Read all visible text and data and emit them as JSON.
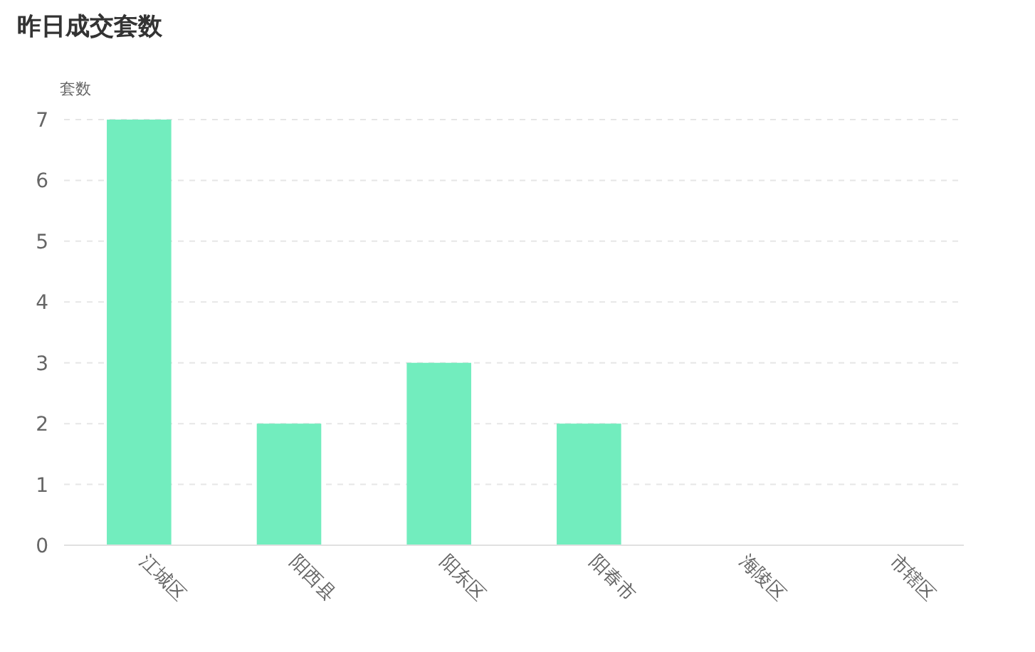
{
  "chart_data": {
    "type": "bar",
    "title": "昨日成交套数",
    "ylabel": "套数",
    "categories": [
      "江城区",
      "阳西县",
      "阳东区",
      "阳春市",
      "海陵区",
      "市辖区"
    ],
    "values": [
      7,
      2,
      3,
      2,
      0,
      0
    ],
    "color": "#72edbe",
    "ylim": [
      0,
      7
    ],
    "yticks": [
      0,
      1,
      2,
      3,
      4,
      5,
      6,
      7
    ],
    "grid": "y"
  }
}
